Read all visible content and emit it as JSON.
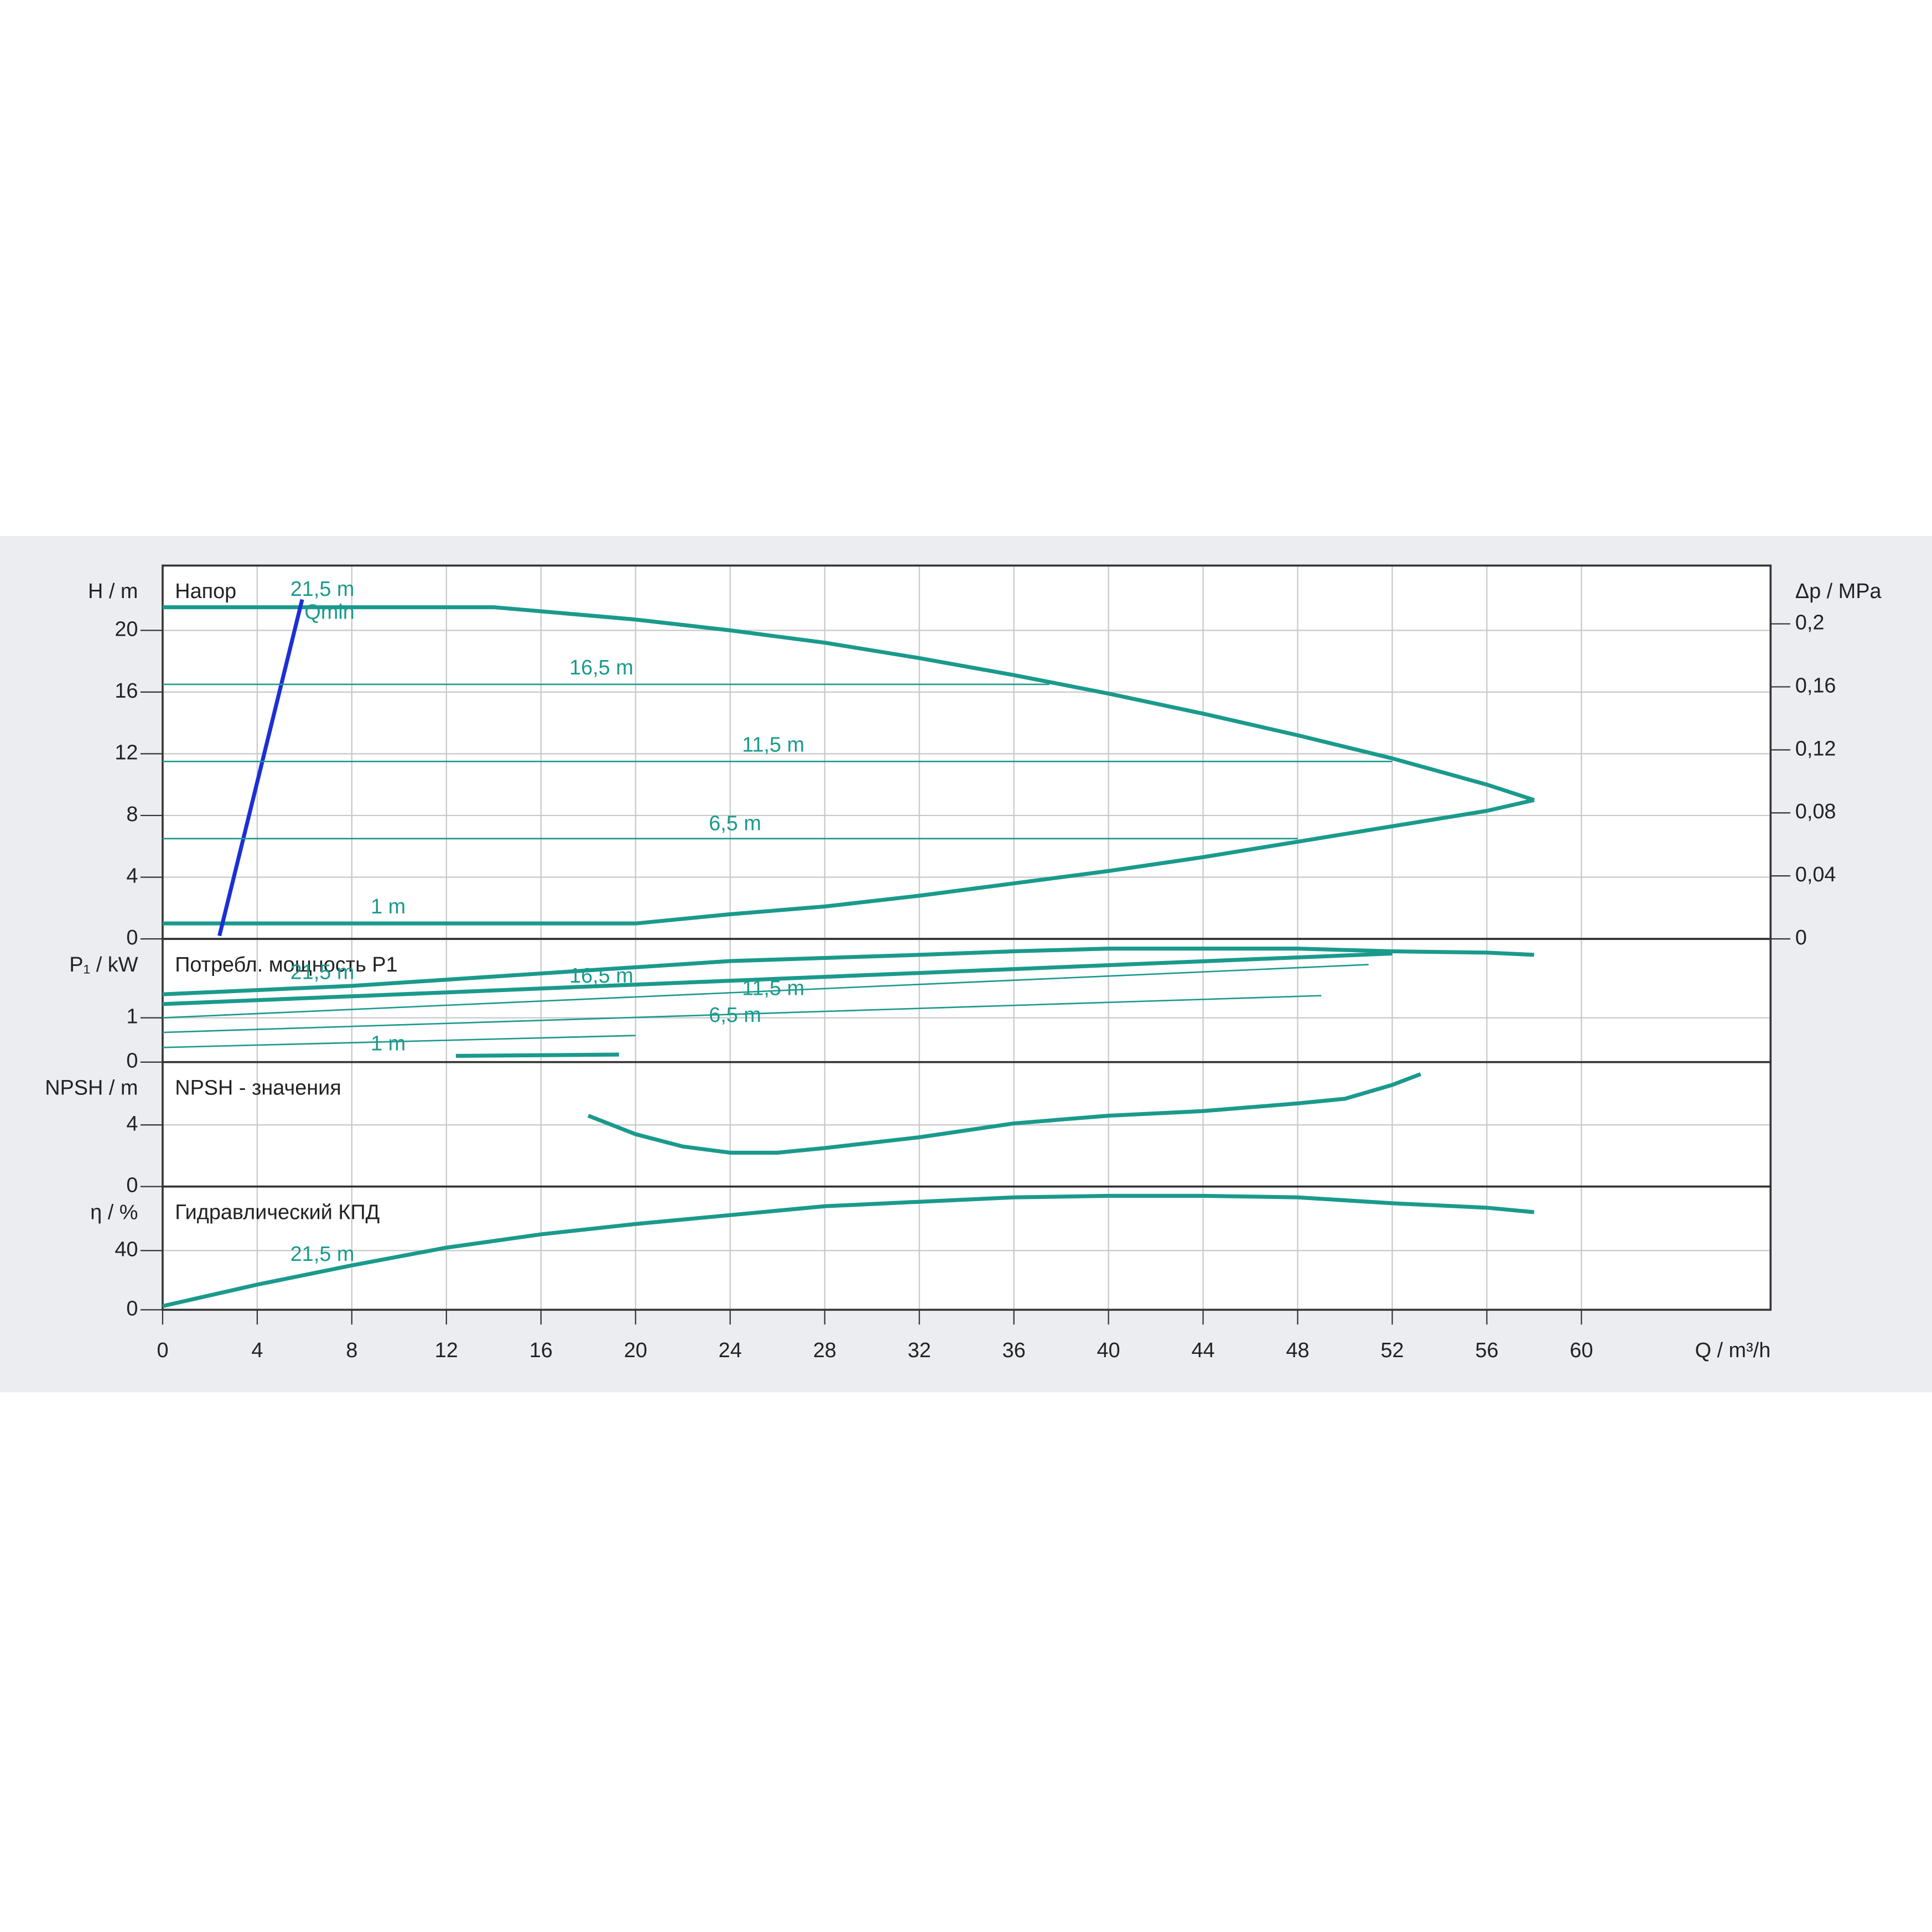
{
  "chart_data": [
    {
      "type": "line",
      "title": "Напор",
      "ylabel": "H / m",
      "y2label": "Δp / MPa",
      "xlim": [
        0,
        68
      ],
      "xticks": [
        0,
        4,
        8,
        12,
        16,
        20,
        24,
        28,
        32,
        36,
        40,
        44,
        48,
        52,
        56,
        60
      ],
      "ylim": [
        0,
        24.2
      ],
      "yticks": [
        0,
        4,
        8,
        12,
        16,
        20
      ],
      "y2lim": [
        0,
        0.237
      ],
      "y2ticks": [
        0,
        {
          "value": 0.04,
          "label": "0,04"
        },
        {
          "value": 0.08,
          "label": "0,08"
        },
        {
          "value": 0.12,
          "label": "0,12"
        },
        {
          "value": 0.16,
          "label": "0,16"
        },
        {
          "value": 0.2,
          "label": "0,2"
        }
      ],
      "grid": true,
      "series": [
        {
          "color": "#1a9a8c",
          "x": [
            0,
            14,
            20,
            24,
            28,
            32,
            36,
            40,
            44,
            48,
            52,
            56,
            58
          ],
          "values": [
            21.5,
            21.5,
            20.7,
            20,
            19.2,
            18.2,
            17.1,
            15.9,
            14.6,
            13.2,
            11.7,
            10,
            9
          ]
        },
        {
          "color": "#1a9a8c",
          "x": [
            0,
            20,
            24,
            28,
            32,
            36,
            40,
            44,
            48,
            52,
            56,
            58
          ],
          "values": [
            1,
            1,
            1.6,
            2.1,
            2.8,
            3.6,
            4.4,
            5.3,
            6.3,
            7.3,
            8.3,
            9
          ]
        },
        {
          "color": "#1c2fd6",
          "x": [
            2.4,
            5.9
          ],
          "values": [
            0.2,
            22
          ]
        },
        {
          "color": "#1a9a8c",
          "x": [
            0,
            37.5
          ],
          "values": [
            16.5,
            16.5
          ]
        },
        {
          "color": "#1a9a8c",
          "x": [
            0,
            52
          ],
          "values": [
            11.5,
            11.5
          ]
        },
        {
          "color": "#1a9a8c",
          "x": [
            0,
            48
          ],
          "values": [
            6.5,
            6.5
          ]
        }
      ],
      "annotations": [
        {
          "text": "21,5 m",
          "x": 5.4,
          "y": 22.6
        },
        {
          "text": "Qmin",
          "x": 6,
          "y": 21.1
        },
        {
          "text": "16,5 m",
          "x": 17.2,
          "y": 17.5
        },
        {
          "text": "11,5 m",
          "x": 24.5,
          "y": 12.5
        },
        {
          "text": "6,5 m",
          "x": 23.1,
          "y": 7.4
        },
        {
          "text": "1 m",
          "x": 8.8,
          "y": 2
        }
      ]
    },
    {
      "type": "line",
      "title": "Потребл. мощность P1",
      "ylabel": "P₁ / kW",
      "xlim": [
        0,
        68
      ],
      "xticks": [
        0,
        4,
        8,
        12,
        16,
        20,
        24,
        28,
        32,
        36,
        40,
        44,
        48,
        52,
        56,
        60
      ],
      "ylim": [
        0,
        2.78
      ],
      "yticks": [
        0,
        1
      ],
      "grid": true,
      "series": [
        {
          "color": "#1a9a8c",
          "x": [
            0,
            8,
            16,
            24,
            32,
            36,
            40,
            44,
            48,
            52,
            56,
            58
          ],
          "values": [
            1.53,
            1.72,
            2,
            2.28,
            2.42,
            2.5,
            2.56,
            2.56,
            2.56,
            2.5,
            2.47,
            2.42
          ]
        },
        {
          "color": "#1a9a8c",
          "x": [
            12.4,
            19.3
          ],
          "values": [
            0.14,
            0.17
          ]
        },
        {
          "color": "#1a9a8c",
          "x": [
            0,
            52
          ],
          "values": [
            1.31,
            2.45
          ]
        },
        {
          "color": "#1a9a8c",
          "x": [
            0,
            51
          ],
          "values": [
            1,
            2.2
          ]
        },
        {
          "color": "#1a9a8c",
          "x": [
            0,
            49
          ],
          "values": [
            0.67,
            1.5
          ]
        },
        {
          "color": "#1a9a8c",
          "x": [
            0,
            20
          ],
          "values": [
            0.33,
            0.6
          ]
        }
      ],
      "annotations": [
        {
          "text": "21,5 m",
          "x": 5.4,
          "y": 2
        },
        {
          "text": "16,5 m",
          "x": 17.2,
          "y": 1.92
        },
        {
          "text": "11,5 m",
          "x": 24.5,
          "y": 1.64
        },
        {
          "text": "6,5 m",
          "x": 23.1,
          "y": 1.03
        },
        {
          "text": "1 m",
          "x": 8.8,
          "y": 0.39
        }
      ]
    },
    {
      "type": "line",
      "title": "NPSH - значения",
      "ylabel": "NPSH / m",
      "xlim": [
        0,
        68
      ],
      "xticks": [
        0,
        4,
        8,
        12,
        16,
        20,
        24,
        28,
        32,
        36,
        40,
        44,
        48,
        52,
        56,
        60
      ],
      "ylim": [
        0,
        8.08
      ],
      "yticks": [
        0,
        4
      ],
      "grid": true,
      "series": [
        {
          "color": "#1a9a8c",
          "x": [
            18,
            20,
            22,
            24,
            26,
            28,
            32,
            36,
            40,
            44,
            48,
            50,
            52,
            53.2
          ],
          "values": [
            4.6,
            3.4,
            2.6,
            2.2,
            2.2,
            2.5,
            3.2,
            4.1,
            4.6,
            4.9,
            5.4,
            5.7,
            6.6,
            7.3
          ]
        }
      ]
    },
    {
      "type": "line",
      "title": "Гидравлический КПД",
      "ylabel": "η / %",
      "xlabel": "Q / m³/h",
      "xlim": [
        0,
        68
      ],
      "xticks": [
        0,
        4,
        8,
        12,
        16,
        20,
        24,
        28,
        32,
        36,
        40,
        44,
        48,
        52,
        56,
        60
      ],
      "ylim": [
        0,
        83.3
      ],
      "yticks": [
        0,
        40
      ],
      "grid": true,
      "series": [
        {
          "color": "#1a9a8c",
          "x": [
            0,
            4,
            8,
            12,
            16,
            20,
            24,
            28,
            32,
            36,
            40,
            44,
            48,
            52,
            56,
            58
          ],
          "values": [
            2.5,
            17,
            30,
            42,
            51,
            58,
            64,
            70,
            73,
            76,
            77,
            77,
            76,
            72,
            69,
            66
          ]
        }
      ],
      "annotations": [
        {
          "text": "21,5 m",
          "x": 5.4,
          "y": 36.7
        }
      ]
    }
  ]
}
